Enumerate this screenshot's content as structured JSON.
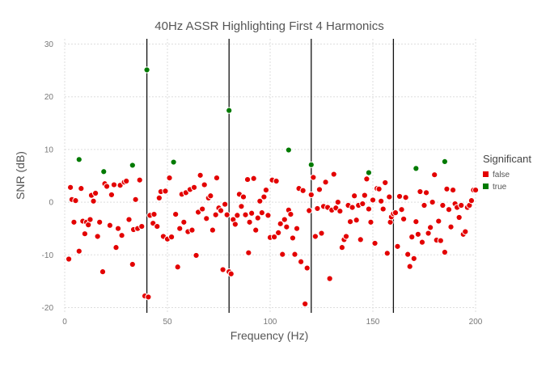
{
  "chart_data": {
    "type": "scatter",
    "title": "40Hz ASSR Highlighting First 4 Harmonics",
    "xlabel": "Frequency (Hz)",
    "ylabel": "SNR (dB)",
    "xlim": [
      0,
      200
    ],
    "ylim": [
      -21,
      31
    ],
    "x_ticks": [
      0,
      50,
      100,
      150,
      200
    ],
    "y_ticks": [
      -20,
      -10,
      0,
      10,
      20,
      30
    ],
    "grid": true,
    "vlines": [
      40,
      80,
      120,
      160
    ],
    "legend": {
      "title": "Significant",
      "position": "right",
      "entries": [
        {
          "label": "false",
          "color": "#e30000"
        },
        {
          "label": "true",
          "color": "#007a00"
        }
      ]
    },
    "series": [
      {
        "name": "false",
        "color": "#e30000",
        "points": [
          [
            2,
            -10.8
          ],
          [
            2.8,
            2.8
          ],
          [
            3.5,
            0.5
          ],
          [
            4.5,
            -3.8
          ],
          [
            5.3,
            0.3
          ],
          [
            7,
            -9.3
          ],
          [
            8,
            2.6
          ],
          [
            8.8,
            -3.6
          ],
          [
            9.8,
            -6
          ],
          [
            10.6,
            -3.8
          ],
          [
            11.5,
            -4.3
          ],
          [
            12.4,
            -3.3
          ],
          [
            13,
            1.3
          ],
          [
            14,
            0.2
          ],
          [
            15,
            1.7
          ],
          [
            16,
            -6.5
          ],
          [
            17,
            -3.8
          ],
          [
            18.5,
            -13.2
          ],
          [
            19.5,
            3.5
          ],
          [
            20.5,
            3
          ],
          [
            22,
            -4.4
          ],
          [
            22.8,
            1.4
          ],
          [
            24,
            3.3
          ],
          [
            25,
            -8.6
          ],
          [
            26,
            -5
          ],
          [
            27,
            3.2
          ],
          [
            27.8,
            -6.3
          ],
          [
            29,
            3.8
          ],
          [
            30,
            4
          ],
          [
            31.3,
            -3.3
          ],
          [
            33,
            -11.8
          ],
          [
            33.5,
            -5.2
          ],
          [
            34.5,
            0.5
          ],
          [
            35.5,
            -5
          ],
          [
            36.5,
            4.2
          ],
          [
            37.5,
            -4.6
          ],
          [
            39,
            -17.8
          ],
          [
            40.7,
            -18
          ],
          [
            41.5,
            -2.5
          ],
          [
            43,
            -4
          ],
          [
            43.5,
            -2.3
          ],
          [
            45,
            -4.6
          ],
          [
            46,
            0.8
          ],
          [
            46.8,
            2
          ],
          [
            48,
            -6.5
          ],
          [
            49,
            2.1
          ],
          [
            50,
            -7
          ],
          [
            51,
            4.6
          ],
          [
            52,
            -6.6
          ],
          [
            54,
            -2.3
          ],
          [
            55,
            -12.3
          ],
          [
            56,
            -5
          ],
          [
            57,
            1.5
          ],
          [
            58,
            -3.8
          ],
          [
            59,
            1.8
          ],
          [
            60,
            -5.6
          ],
          [
            61,
            2.4
          ],
          [
            62,
            -5.3
          ],
          [
            63,
            2.8
          ],
          [
            64,
            -10.1
          ],
          [
            65,
            -1.9
          ],
          [
            66,
            5.1
          ],
          [
            67,
            -1.3
          ],
          [
            68,
            3.3
          ],
          [
            69,
            -3.1
          ],
          [
            70,
            0.8
          ],
          [
            71,
            1.2
          ],
          [
            72,
            -5.3
          ],
          [
            73.5,
            -2.4
          ],
          [
            74,
            4.6
          ],
          [
            75,
            -1.1
          ],
          [
            76,
            -1.6
          ],
          [
            77,
            -12.8
          ],
          [
            78,
            -0.4
          ],
          [
            79,
            -2.4
          ],
          [
            80,
            -13.2
          ],
          [
            81,
            -13.6
          ],
          [
            82,
            -3.3
          ],
          [
            83,
            -4.2
          ],
          [
            84,
            -2.5
          ],
          [
            85,
            1.5
          ],
          [
            86,
            -0.8
          ],
          [
            87,
            1
          ],
          [
            88,
            -2.4
          ],
          [
            89,
            4.3
          ],
          [
            89.5,
            -9.6
          ],
          [
            90,
            -3.8
          ],
          [
            91,
            -2.1
          ],
          [
            92,
            4.5
          ],
          [
            93,
            -5.3
          ],
          [
            94,
            -3
          ],
          [
            95,
            0.2
          ],
          [
            96,
            -2
          ],
          [
            97,
            1
          ],
          [
            98,
            2.3
          ],
          [
            99,
            -2.5
          ],
          [
            100,
            -6.7
          ],
          [
            101,
            4.2
          ],
          [
            102,
            -6.6
          ],
          [
            103,
            4
          ],
          [
            104,
            -5.8
          ],
          [
            105,
            -4.1
          ],
          [
            106,
            -9.9
          ],
          [
            107,
            -3.3
          ],
          [
            108,
            -4.7
          ],
          [
            109,
            -1.5
          ],
          [
            110,
            -2.3
          ],
          [
            111,
            -6.8
          ],
          [
            112,
            -9.9
          ],
          [
            113,
            -5
          ],
          [
            114,
            2.6
          ],
          [
            115,
            -11.3
          ],
          [
            116,
            2.2
          ],
          [
            117,
            -19.3
          ],
          [
            118,
            -12.5
          ],
          [
            119,
            -1.6
          ],
          [
            120,
            1.4
          ],
          [
            121,
            4.7
          ],
          [
            122,
            -6.5
          ],
          [
            123,
            -1.2
          ],
          [
            124,
            2.4
          ],
          [
            125,
            -5.9
          ],
          [
            126,
            -0.8
          ],
          [
            127,
            3.8
          ],
          [
            128,
            -1
          ],
          [
            129,
            -14.5
          ],
          [
            130,
            -1.5
          ],
          [
            131,
            5.3
          ],
          [
            132,
            -1.1
          ],
          [
            133,
            0
          ],
          [
            134,
            -1.7
          ],
          [
            135,
            -8.6
          ],
          [
            136,
            -7.1
          ],
          [
            137,
            -6.5
          ],
          [
            138,
            -0.6
          ],
          [
            139,
            -3.7
          ],
          [
            140,
            -1
          ],
          [
            141,
            1.2
          ],
          [
            142,
            -3.4
          ],
          [
            143,
            -0.6
          ],
          [
            144,
            -7.1
          ],
          [
            145,
            -0.3
          ],
          [
            146,
            1.3
          ],
          [
            147,
            4.4
          ],
          [
            148,
            -1.3
          ],
          [
            149,
            -3.8
          ],
          [
            150,
            0.4
          ],
          [
            151,
            -7.8
          ],
          [
            152,
            2.6
          ],
          [
            153,
            2.5
          ],
          [
            154,
            0.2
          ],
          [
            155,
            -1.3
          ],
          [
            156,
            3.7
          ],
          [
            157,
            -9.7
          ],
          [
            158,
            1
          ],
          [
            158.5,
            -3.8
          ],
          [
            159,
            -2.8
          ],
          [
            160,
            -2.2
          ],
          [
            161,
            -2
          ],
          [
            162,
            -8.4
          ],
          [
            163,
            1.1
          ],
          [
            164,
            -1.4
          ],
          [
            165,
            -3.2
          ],
          [
            166,
            0.9
          ],
          [
            167,
            -9.9
          ],
          [
            168,
            -12.2
          ],
          [
            169,
            -6.6
          ],
          [
            170,
            -10.7
          ],
          [
            171,
            -3.7
          ],
          [
            172,
            -6.1
          ],
          [
            173,
            2
          ],
          [
            174,
            -7.6
          ],
          [
            175,
            -0.6
          ],
          [
            176,
            1.8
          ],
          [
            177,
            -5.9
          ],
          [
            178,
            -4.8
          ],
          [
            179,
            0
          ],
          [
            180,
            5.2
          ],
          [
            181,
            -7.2
          ],
          [
            182,
            -3.6
          ],
          [
            183,
            -7.3
          ],
          [
            184,
            -0.6
          ],
          [
            185,
            -9.5
          ],
          [
            186,
            2.5
          ],
          [
            187,
            -1.4
          ],
          [
            188,
            -4.7
          ],
          [
            189,
            2.3
          ],
          [
            190,
            -0.3
          ],
          [
            191,
            -1
          ],
          [
            192,
            -2.9
          ],
          [
            193,
            -0.6
          ],
          [
            194,
            -6.1
          ],
          [
            195,
            -5.6
          ],
          [
            196,
            -1
          ],
          [
            197,
            -0.6
          ],
          [
            198,
            0.3
          ],
          [
            199,
            2.3
          ],
          [
            200,
            2.3
          ]
        ]
      },
      {
        "name": "true",
        "color": "#007a00",
        "points": [
          [
            7,
            8.1
          ],
          [
            19,
            5.8
          ],
          [
            33,
            7
          ],
          [
            40,
            25.1
          ],
          [
            53,
            7.6
          ],
          [
            80,
            17.4
          ],
          [
            109,
            9.9
          ],
          [
            120,
            7.1
          ],
          [
            148,
            5.6
          ],
          [
            171,
            6.4
          ],
          [
            185,
            7.7
          ]
        ]
      }
    ]
  }
}
